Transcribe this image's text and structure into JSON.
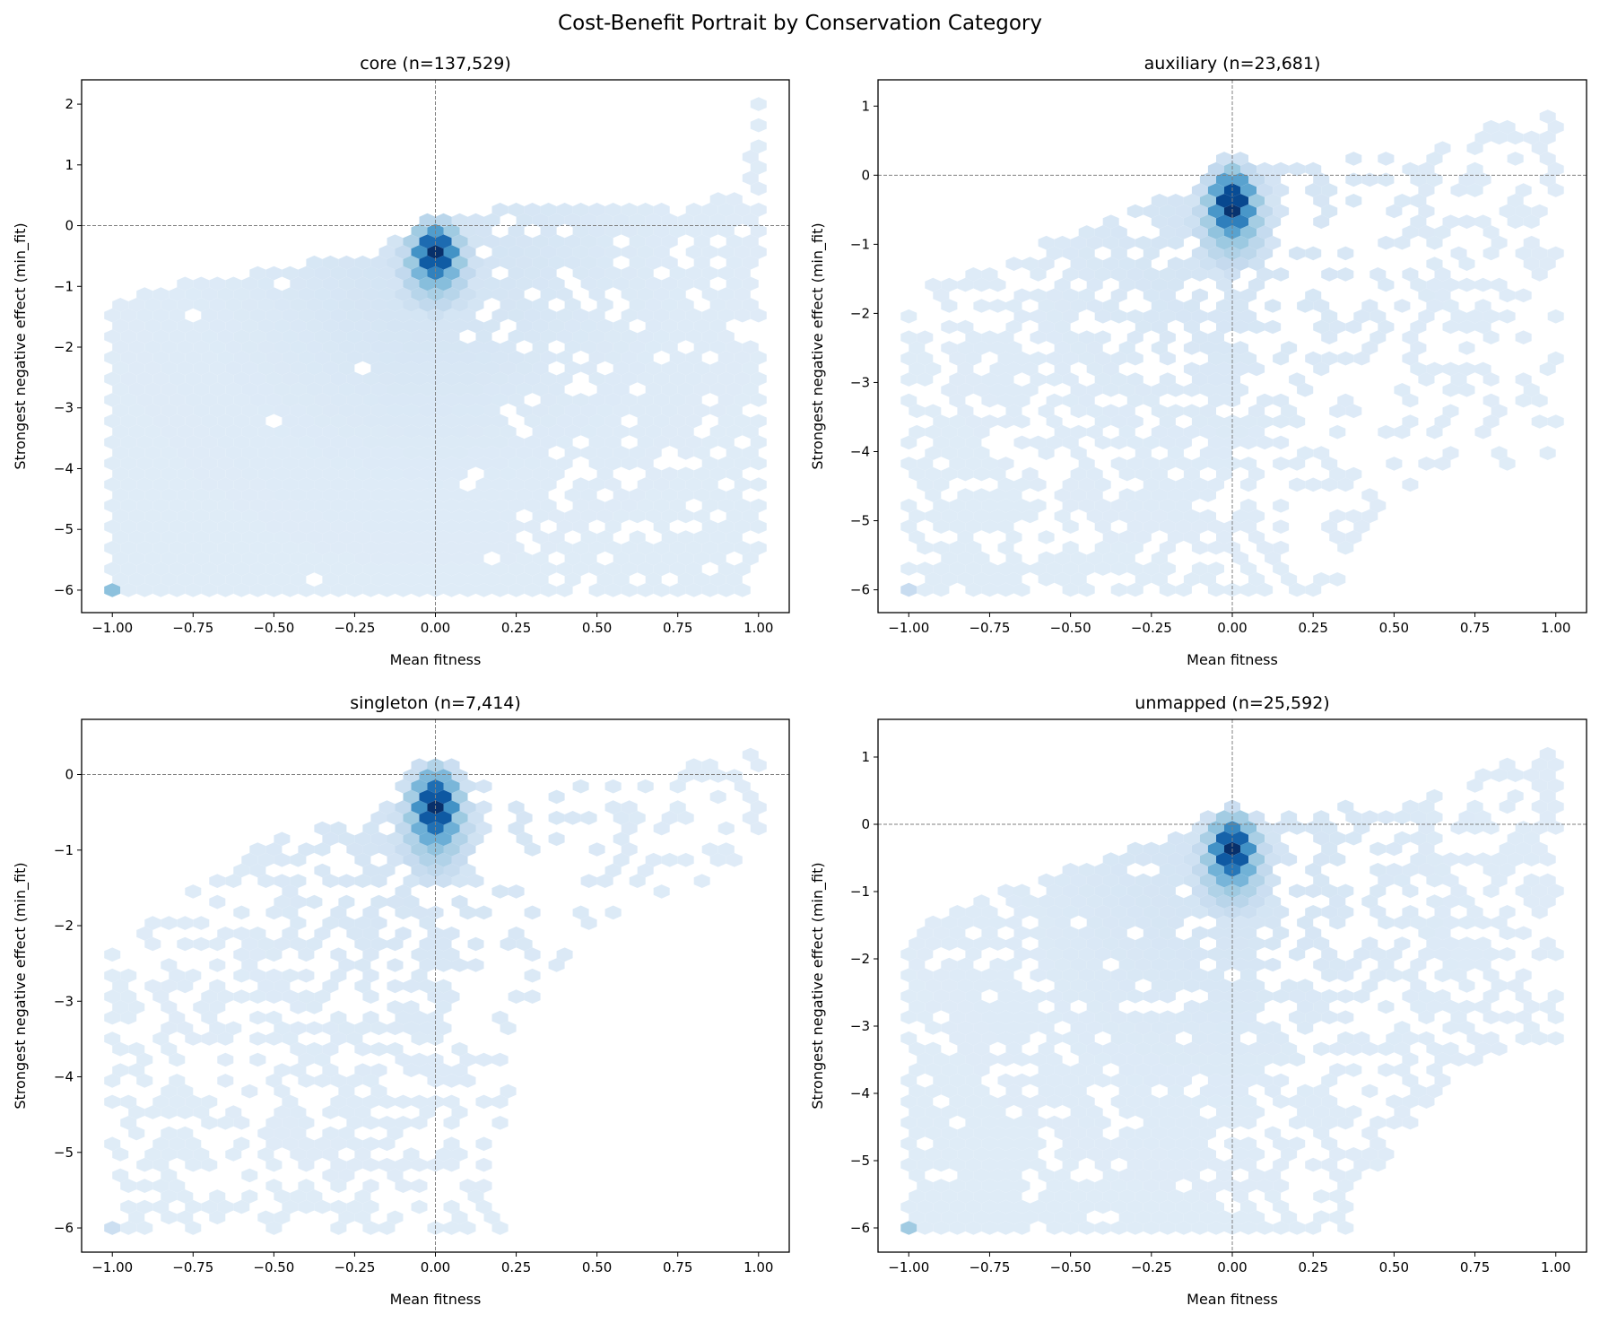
{
  "chart_data": {
    "title": "Cost-Benefit Portrait by Conservation Category",
    "type": "hexbin",
    "colormap": [
      "#f7fbff",
      "#deebf7",
      "#c6dbef",
      "#9ecae1",
      "#6baed6",
      "#4292c6",
      "#2171b5",
      "#08519c",
      "#08306b"
    ],
    "reference_line_color": "#808080",
    "panels": [
      {
        "title": "core (n=137,529)",
        "xlabel": "Mean fitness",
        "ylabel": "Strongest negative effect (min_fit)",
        "xlim": [
          -1.095,
          1.095
        ],
        "ylim": [
          -6.37,
          2.4
        ],
        "xticks": [
          -1.0,
          -0.75,
          -0.5,
          -0.25,
          0.0,
          0.25,
          0.5,
          0.75,
          1.0
        ],
        "xticklabels": [
          "−1.00",
          "−0.75",
          "−0.50",
          "−0.25",
          "0.00",
          "0.25",
          "0.50",
          "0.75",
          "1.00"
        ],
        "yticks": [
          2,
          1,
          0,
          -1,
          -2,
          -3,
          -4,
          -5,
          -6
        ],
        "yticklabels": [
          "2",
          "1",
          "0",
          "−1",
          "−2",
          "−3",
          "−4",
          "−5",
          "−6"
        ],
        "data_xrange": [
          -1,
          1
        ],
        "data_yrange": [
          -6,
          2
        ],
        "gridsize": 40,
        "peak": {
          "x": 0.0,
          "y": -0.45
        },
        "upper_envelope": [
          [
            -1,
            -1.3
          ],
          [
            -0.8,
            -1.0
          ],
          [
            -0.2,
            -0.5
          ],
          [
            0,
            0.1
          ],
          [
            0.3,
            0.3
          ],
          [
            0.95,
            0.4
          ],
          [
            1,
            2.0
          ]
        ],
        "lower_envelope": [
          [
            -1,
            -6
          ],
          [
            1,
            -6
          ]
        ],
        "coverage_left": 0.99,
        "coverage_right": 0.85,
        "corner_hex": {
          "x": -1.0,
          "y": -6.0,
          "level": 0.18
        }
      },
      {
        "title": "auxiliary (n=23,681)",
        "xlabel": "Mean fitness",
        "ylabel": "Strongest negative effect (min_fit)",
        "xlim": [
          -1.095,
          1.095
        ],
        "ylim": [
          -6.33,
          1.38
        ],
        "xticks": [
          -1.0,
          -0.75,
          -0.5,
          -0.25,
          0.0,
          0.25,
          0.5,
          0.75,
          1.0
        ],
        "xticklabels": [
          "−1.00",
          "−0.75",
          "−0.50",
          "−0.25",
          "0.00",
          "0.25",
          "0.50",
          "0.75",
          "1.00"
        ],
        "yticks": [
          1,
          0,
          -1,
          -2,
          -3,
          -4,
          -5,
          -6
        ],
        "yticklabels": [
          "1",
          "0",
          "−1",
          "−2",
          "−3",
          "−4",
          "−5",
          "−6"
        ],
        "data_xrange": [
          -1,
          1
        ],
        "data_yrange": [
          -6,
          1
        ],
        "gridsize": 40,
        "peak": {
          "x": 0.0,
          "y": -0.4
        },
        "upper_envelope": [
          [
            -1,
            -1.7
          ],
          [
            -0.5,
            -0.9
          ],
          [
            -0.1,
            -0.1
          ],
          [
            0.1,
            0.1
          ],
          [
            0.6,
            0.3
          ],
          [
            1,
            1.0
          ]
        ],
        "lower_envelope": [
          [
            -1,
            -6
          ],
          [
            0.3,
            -6
          ],
          [
            0.5,
            -4.5
          ],
          [
            1,
            -4.0
          ]
        ],
        "coverage_left": 0.7,
        "coverage_right": 0.35,
        "corner_hex": {
          "x": -1.0,
          "y": -6.0,
          "level": 0.06
        }
      },
      {
        "title": "singleton (n=7,414)",
        "xlabel": "Mean fitness",
        "ylabel": "Strongest negative effect (min_fit)",
        "xlim": [
          -1.095,
          1.095
        ],
        "ylim": [
          -6.32,
          0.73
        ],
        "xticks": [
          -1.0,
          -0.75,
          -0.5,
          -0.25,
          0.0,
          0.25,
          0.5,
          0.75,
          1.0
        ],
        "xticklabels": [
          "−1.00",
          "−0.75",
          "−0.50",
          "−0.25",
          "0.00",
          "0.25",
          "0.50",
          "0.75",
          "1.00"
        ],
        "yticks": [
          0,
          -1,
          -2,
          -3,
          -4,
          -5,
          -6
        ],
        "yticklabels": [
          "0",
          "−1",
          "−2",
          "−3",
          "−4",
          "−5",
          "−6"
        ],
        "data_xrange": [
          -1,
          1
        ],
        "data_yrange": [
          -6,
          0.4
        ],
        "gridsize": 40,
        "peak": {
          "x": 0.0,
          "y": -0.42
        },
        "upper_envelope": [
          [
            -1,
            -2.3
          ],
          [
            -0.6,
            -1.0
          ],
          [
            -0.2,
            -0.6
          ],
          [
            0,
            0.0
          ],
          [
            0.3,
            -0.3
          ],
          [
            1,
            0.4
          ]
        ],
        "lower_envelope": [
          [
            -1,
            -6
          ],
          [
            0.2,
            -6
          ],
          [
            0.3,
            -3.0
          ],
          [
            0.6,
            -1.6
          ],
          [
            1,
            -1.2
          ]
        ],
        "coverage_left": 0.5,
        "coverage_right": 0.3,
        "corner_hex": {
          "x": -1.0,
          "y": -6.0,
          "level": 0.05
        }
      },
      {
        "title": "unmapped (n=25,592)",
        "xlabel": "Mean fitness",
        "ylabel": "Strongest negative effect (min_fit)",
        "xlim": [
          -1.095,
          1.095
        ],
        "ylim": [
          -6.36,
          1.56
        ],
        "xticks": [
          -1.0,
          -0.75,
          -0.5,
          -0.25,
          0.0,
          0.25,
          0.5,
          0.75,
          1.0
        ],
        "xticklabels": [
          "−1.00",
          "−0.75",
          "−0.50",
          "−0.25",
          "0.00",
          "0.25",
          "0.50",
          "0.75",
          "1.00"
        ],
        "yticks": [
          1,
          0,
          -1,
          -2,
          -3,
          -4,
          -5,
          -6
        ],
        "yticklabels": [
          "1",
          "0",
          "−1",
          "−2",
          "−3",
          "−4",
          "−5",
          "−6"
        ],
        "data_xrange": [
          -1,
          1
        ],
        "data_yrange": [
          -6,
          1.2
        ],
        "gridsize": 40,
        "peak": {
          "x": 0.0,
          "y": -0.37
        },
        "upper_envelope": [
          [
            -1,
            -1.6
          ],
          [
            -0.7,
            -1.0
          ],
          [
            -0.1,
            -0.1
          ],
          [
            0.2,
            0.1
          ],
          [
            0.65,
            0.5
          ],
          [
            1,
            1.2
          ]
        ],
        "lower_envelope": [
          [
            -1,
            -6
          ],
          [
            0.4,
            -6
          ],
          [
            0.7,
            -3.5
          ],
          [
            1,
            -3.2
          ]
        ],
        "coverage_left": 0.85,
        "coverage_right": 0.5,
        "corner_hex": {
          "x": -1.0,
          "y": -6.0,
          "level": 0.14
        }
      }
    ]
  }
}
